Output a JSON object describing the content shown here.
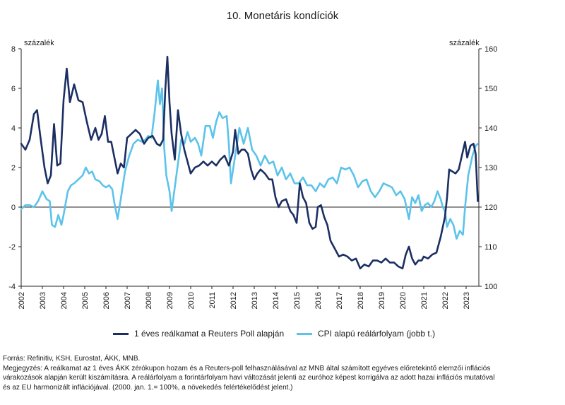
{
  "title": "10. Monetáris kondíciók",
  "chart_data": {
    "type": "line",
    "title": "10. Monetáris kondíciók",
    "ylabel_left": "százalék",
    "ylabel_right": "százalék",
    "ylim_left": [
      -4,
      8
    ],
    "yticks_left": [
      -4,
      -2,
      0,
      2,
      4,
      6,
      8
    ],
    "ylim_right": [
      100,
      160
    ],
    "yticks_right": [
      100,
      110,
      120,
      130,
      140,
      150,
      160
    ],
    "xlim": [
      2002,
      2023.6
    ],
    "x_tick_labels": [
      "2002",
      "2003",
      "2004",
      "2005",
      "2006",
      "2007",
      "2008",
      "2009",
      "2010",
      "2011",
      "2012",
      "2013",
      "2014",
      "2015",
      "2016",
      "2017",
      "2018",
      "2019",
      "2020",
      "2021",
      "2022",
      "2023"
    ],
    "legend_placement": "bottom",
    "series": [
      {
        "name": "1 éves reálkamat a Reuters Poll alapján",
        "axis": "left",
        "color": "#1b2f63",
        "points": [
          [
            2002.0,
            3.2
          ],
          [
            2002.2,
            2.9
          ],
          [
            2002.4,
            3.4
          ],
          [
            2002.6,
            4.7
          ],
          [
            2002.75,
            4.9
          ],
          [
            2002.9,
            3.6
          ],
          [
            2003.1,
            2.0
          ],
          [
            2003.25,
            1.2
          ],
          [
            2003.4,
            1.6
          ],
          [
            2003.55,
            4.2
          ],
          [
            2003.7,
            2.1
          ],
          [
            2003.85,
            2.2
          ],
          [
            2004.0,
            5.4
          ],
          [
            2004.15,
            7.0
          ],
          [
            2004.3,
            5.3
          ],
          [
            2004.5,
            6.2
          ],
          [
            2004.7,
            5.4
          ],
          [
            2004.9,
            5.3
          ],
          [
            2005.1,
            4.3
          ],
          [
            2005.3,
            3.4
          ],
          [
            2005.5,
            4.0
          ],
          [
            2005.65,
            3.4
          ],
          [
            2005.8,
            3.7
          ],
          [
            2005.95,
            4.6
          ],
          [
            2006.1,
            3.3
          ],
          [
            2006.25,
            3.3
          ],
          [
            2006.4,
            2.5
          ],
          [
            2006.55,
            1.7
          ],
          [
            2006.7,
            2.2
          ],
          [
            2006.85,
            2.0
          ],
          [
            2007.0,
            3.5
          ],
          [
            2007.2,
            3.7
          ],
          [
            2007.4,
            3.9
          ],
          [
            2007.6,
            3.7
          ],
          [
            2007.8,
            3.2
          ],
          [
            2008.0,
            3.5
          ],
          [
            2008.2,
            3.6
          ],
          [
            2008.4,
            3.2
          ],
          [
            2008.55,
            3.1
          ],
          [
            2008.7,
            3.4
          ],
          [
            2008.8,
            5.9
          ],
          [
            2008.9,
            7.6
          ],
          [
            2009.0,
            5.3
          ],
          [
            2009.1,
            3.7
          ],
          [
            2009.25,
            2.4
          ],
          [
            2009.4,
            4.9
          ],
          [
            2009.55,
            3.7
          ],
          [
            2009.7,
            2.9
          ],
          [
            2009.85,
            2.3
          ],
          [
            2010.0,
            1.7
          ],
          [
            2010.2,
            2.0
          ],
          [
            2010.4,
            2.1
          ],
          [
            2010.6,
            2.3
          ],
          [
            2010.8,
            2.1
          ],
          [
            2011.0,
            2.3
          ],
          [
            2011.2,
            2.1
          ],
          [
            2011.4,
            2.4
          ],
          [
            2011.6,
            2.6
          ],
          [
            2011.8,
            2.1
          ],
          [
            2012.0,
            2.8
          ],
          [
            2012.1,
            3.9
          ],
          [
            2012.25,
            2.7
          ],
          [
            2012.4,
            2.9
          ],
          [
            2012.55,
            2.9
          ],
          [
            2012.7,
            2.7
          ],
          [
            2012.85,
            1.9
          ],
          [
            2013.0,
            1.4
          ],
          [
            2013.15,
            1.7
          ],
          [
            2013.3,
            1.9
          ],
          [
            2013.5,
            1.7
          ],
          [
            2013.7,
            1.4
          ],
          [
            2013.85,
            1.4
          ],
          [
            2014.0,
            0.5
          ],
          [
            2014.15,
            0.0
          ],
          [
            2014.3,
            0.3
          ],
          [
            2014.5,
            0.4
          ],
          [
            2014.7,
            -0.2
          ],
          [
            2014.85,
            -0.4
          ],
          [
            2015.0,
            -0.8
          ],
          [
            2015.15,
            1.2
          ],
          [
            2015.3,
            0.5
          ],
          [
            2015.45,
            0.2
          ],
          [
            2015.6,
            -0.8
          ],
          [
            2015.75,
            -1.1
          ],
          [
            2015.9,
            -1.0
          ],
          [
            2016.0,
            0.0
          ],
          [
            2016.15,
            0.1
          ],
          [
            2016.3,
            -0.5
          ],
          [
            2016.45,
            -0.9
          ],
          [
            2016.6,
            -1.7
          ],
          [
            2016.8,
            -2.1
          ],
          [
            2017.0,
            -2.5
          ],
          [
            2017.2,
            -2.4
          ],
          [
            2017.4,
            -2.5
          ],
          [
            2017.6,
            -2.7
          ],
          [
            2017.8,
            -2.6
          ],
          [
            2018.0,
            -3.1
          ],
          [
            2018.2,
            -2.9
          ],
          [
            2018.4,
            -3.0
          ],
          [
            2018.6,
            -2.7
          ],
          [
            2018.8,
            -2.7
          ],
          [
            2019.0,
            -2.8
          ],
          [
            2019.2,
            -2.6
          ],
          [
            2019.4,
            -2.8
          ],
          [
            2019.6,
            -2.8
          ],
          [
            2019.8,
            -3.0
          ],
          [
            2020.0,
            -3.1
          ],
          [
            2020.15,
            -2.4
          ],
          [
            2020.3,
            -2.0
          ],
          [
            2020.45,
            -2.6
          ],
          [
            2020.6,
            -2.9
          ],
          [
            2020.75,
            -2.7
          ],
          [
            2020.9,
            -2.7
          ],
          [
            2021.0,
            -2.5
          ],
          [
            2021.2,
            -2.6
          ],
          [
            2021.4,
            -2.4
          ],
          [
            2021.6,
            -2.3
          ],
          [
            2021.8,
            -1.5
          ],
          [
            2022.0,
            -0.5
          ],
          [
            2022.1,
            0.5
          ],
          [
            2022.2,
            1.9
          ],
          [
            2022.35,
            1.8
          ],
          [
            2022.5,
            1.7
          ],
          [
            2022.65,
            1.9
          ],
          [
            2022.8,
            2.6
          ],
          [
            2022.95,
            3.3
          ],
          [
            2023.05,
            2.5
          ],
          [
            2023.2,
            3.1
          ],
          [
            2023.35,
            3.2
          ],
          [
            2023.45,
            2.7
          ],
          [
            2023.55,
            0.3
          ]
        ]
      },
      {
        "name": "CPI alapú reálárfolyam (jobb t.)",
        "axis": "right",
        "color": "#5cc3ea",
        "points": [
          [
            2002.0,
            119.5
          ],
          [
            2002.2,
            120.5
          ],
          [
            2002.4,
            120.5
          ],
          [
            2002.6,
            120.0
          ],
          [
            2002.8,
            121.5
          ],
          [
            2003.0,
            124.0
          ],
          [
            2003.2,
            122.0
          ],
          [
            2003.35,
            121.5
          ],
          [
            2003.45,
            115.5
          ],
          [
            2003.6,
            115.0
          ],
          [
            2003.75,
            118.0
          ],
          [
            2003.9,
            115.5
          ],
          [
            2004.0,
            118.0
          ],
          [
            2004.2,
            124.0
          ],
          [
            2004.35,
            125.5
          ],
          [
            2004.5,
            126.0
          ],
          [
            2004.7,
            127.0
          ],
          [
            2004.9,
            128.0
          ],
          [
            2005.05,
            130.0
          ],
          [
            2005.2,
            128.5
          ],
          [
            2005.35,
            129.0
          ],
          [
            2005.5,
            127.0
          ],
          [
            2005.7,
            126.5
          ],
          [
            2005.85,
            125.5
          ],
          [
            2006.0,
            125.0
          ],
          [
            2006.15,
            125.5
          ],
          [
            2006.3,
            124.5
          ],
          [
            2006.4,
            121.0
          ],
          [
            2006.55,
            117.0
          ],
          [
            2006.7,
            122.0
          ],
          [
            2006.9,
            129.0
          ],
          [
            2007.1,
            133.0
          ],
          [
            2007.3,
            136.0
          ],
          [
            2007.5,
            137.0
          ],
          [
            2007.7,
            136.5
          ],
          [
            2007.85,
            137.0
          ],
          [
            2008.0,
            138.0
          ],
          [
            2008.15,
            137.5
          ],
          [
            2008.3,
            144.0
          ],
          [
            2008.45,
            152.0
          ],
          [
            2008.55,
            146.0
          ],
          [
            2008.65,
            150.0
          ],
          [
            2008.75,
            135.0
          ],
          [
            2008.85,
            128.0
          ],
          [
            2009.0,
            124.0
          ],
          [
            2009.1,
            119.0
          ],
          [
            2009.25,
            125.0
          ],
          [
            2009.4,
            131.0
          ],
          [
            2009.55,
            137.0
          ],
          [
            2009.7,
            136.0
          ],
          [
            2009.85,
            139.0
          ],
          [
            2010.0,
            136.5
          ],
          [
            2010.2,
            137.5
          ],
          [
            2010.35,
            136.0
          ],
          [
            2010.5,
            133.0
          ],
          [
            2010.7,
            140.5
          ],
          [
            2010.9,
            140.5
          ],
          [
            2011.05,
            137.5
          ],
          [
            2011.2,
            141.5
          ],
          [
            2011.35,
            144.0
          ],
          [
            2011.5,
            142.5
          ],
          [
            2011.7,
            143.0
          ],
          [
            2011.8,
            136.0
          ],
          [
            2011.9,
            126.0
          ],
          [
            2012.1,
            133.0
          ],
          [
            2012.3,
            140.0
          ],
          [
            2012.5,
            136.0
          ],
          [
            2012.7,
            140.0
          ],
          [
            2012.9,
            134.5
          ],
          [
            2013.1,
            133.0
          ],
          [
            2013.3,
            130.5
          ],
          [
            2013.5,
            133.0
          ],
          [
            2013.7,
            131.0
          ],
          [
            2013.9,
            131.5
          ],
          [
            2014.1,
            128.0
          ],
          [
            2014.3,
            130.0
          ],
          [
            2014.5,
            127.0
          ],
          [
            2014.7,
            128.5
          ],
          [
            2014.9,
            126.0
          ],
          [
            2015.1,
            126.0
          ],
          [
            2015.3,
            127.5
          ],
          [
            2015.5,
            125.5
          ],
          [
            2015.7,
            125.5
          ],
          [
            2015.9,
            124.0
          ],
          [
            2016.1,
            126.0
          ],
          [
            2016.3,
            125.0
          ],
          [
            2016.5,
            127.0
          ],
          [
            2016.7,
            127.5
          ],
          [
            2016.9,
            126.0
          ],
          [
            2017.1,
            130.0
          ],
          [
            2017.3,
            129.5
          ],
          [
            2017.5,
            130.0
          ],
          [
            2017.7,
            128.0
          ],
          [
            2017.9,
            125.0
          ],
          [
            2018.1,
            126.5
          ],
          [
            2018.3,
            127.0
          ],
          [
            2018.5,
            124.0
          ],
          [
            2018.7,
            122.5
          ],
          [
            2018.9,
            124.0
          ],
          [
            2019.1,
            126.0
          ],
          [
            2019.3,
            125.5
          ],
          [
            2019.5,
            125.0
          ],
          [
            2019.7,
            123.0
          ],
          [
            2019.9,
            124.0
          ],
          [
            2020.1,
            122.0
          ],
          [
            2020.3,
            117.0
          ],
          [
            2020.45,
            122.5
          ],
          [
            2020.6,
            121.0
          ],
          [
            2020.75,
            123.0
          ],
          [
            2020.9,
            119.0
          ],
          [
            2021.05,
            120.5
          ],
          [
            2021.2,
            121.0
          ],
          [
            2021.35,
            120.0
          ],
          [
            2021.5,
            121.5
          ],
          [
            2021.65,
            124.0
          ],
          [
            2021.8,
            122.0
          ],
          [
            2021.9,
            120.0
          ],
          [
            2022.0,
            119.0
          ],
          [
            2022.1,
            115.0
          ],
          [
            2022.25,
            117.0
          ],
          [
            2022.4,
            115.5
          ],
          [
            2022.55,
            112.0
          ],
          [
            2022.7,
            114.0
          ],
          [
            2022.85,
            113.0
          ],
          [
            2022.95,
            120.0
          ],
          [
            2023.1,
            128.0
          ],
          [
            2023.3,
            133.0
          ],
          [
            2023.45,
            135.5
          ],
          [
            2023.55,
            136.0
          ]
        ]
      }
    ]
  },
  "footer": {
    "source": "Forrás: Refinitiv, KSH, Eurostat, ÁKK, MNB.",
    "note_line1": "Megjegyzés: A reálkamat az 1 éves ÁKK zérókupon hozam és a Reuters-poll felhasználásával az MNB által számított egyéves előretekintő elemzői inflációs",
    "note_line2": "várakozások alapján került kiszámításra. A reálárfolyam a forintárfolyam havi változását jelenti az euróhoz képest korrigálva az adott hazai inflációs mutatóval",
    "note_line3": "és az EU harmonizált inflációjával. (2000. jan. 1.= 100%, a növekedés felértékelődést jelent.)"
  }
}
